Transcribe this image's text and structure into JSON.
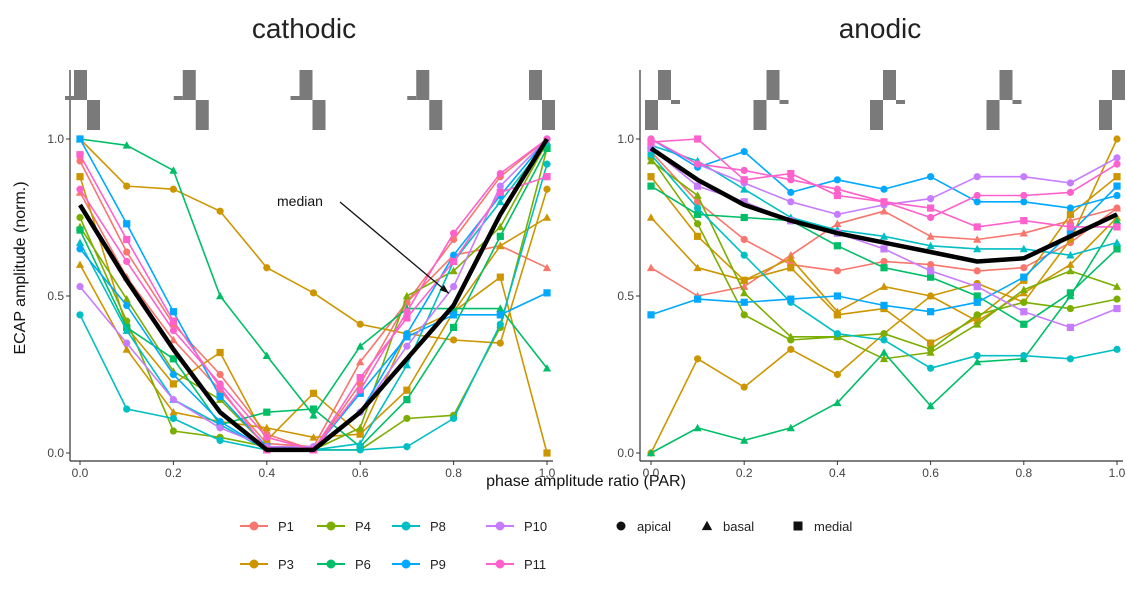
{
  "chart_data": {
    "type": "line",
    "ylabel": "ECAP amplitude (norm.)",
    "xlabel": "phase amplitude ratio (PAR)",
    "xlim": [
      0,
      1
    ],
    "ylim": [
      0,
      1
    ],
    "x_ticks": [
      "0.0",
      "0.2",
      "0.4",
      "0.6",
      "0.8",
      "1.0"
    ],
    "y_ticks": [
      "0.0",
      "0.5",
      "1.0"
    ],
    "x": [
      0,
      0.1,
      0.2,
      0.3,
      0.4,
      0.5,
      0.6,
      0.7,
      0.8,
      0.9,
      1.0
    ],
    "grid": false,
    "legend_participants": [
      {
        "name": "P1",
        "color": "#F8766D"
      },
      {
        "name": "P3",
        "color": "#CD9600"
      },
      {
        "name": "P4",
        "color": "#7CAE00"
      },
      {
        "name": "P6",
        "color": "#00BE67"
      },
      {
        "name": "P8",
        "color": "#00BFC4"
      },
      {
        "name": "P9",
        "color": "#00A9FF"
      },
      {
        "name": "P10",
        "color": "#C77CFF"
      },
      {
        "name": "P11",
        "color": "#FF61CC"
      }
    ],
    "legend_shapes": [
      {
        "name": "apical",
        "shape": "circle"
      },
      {
        "name": "basal",
        "shape": "triangle"
      },
      {
        "name": "medial",
        "shape": "square"
      }
    ],
    "panels": [
      {
        "title": "cathodic",
        "annotation": "median",
        "median": [
          0.79,
          0.55,
          0.33,
          0.13,
          0.01,
          0.01,
          0.13,
          0.3,
          0.47,
          0.76,
          1.0
        ],
        "series": [
          {
            "participant": "P1",
            "color": "#F8766D",
            "shape": "circle",
            "values": [
              0.93,
              0.64,
              0.41,
              0.25,
              0.06,
              0.01,
              0.22,
              0.48,
              0.68,
              0.88,
              1.0
            ]
          },
          {
            "participant": "P1",
            "color": "#F8766D",
            "shape": "triangle",
            "values": [
              0.83,
              0.56,
              0.36,
              0.2,
              0.03,
              0.02,
              0.29,
              0.48,
              0.63,
              0.66,
              0.59
            ]
          },
          {
            "participant": "P3",
            "color": "#CD9600",
            "shape": "circle",
            "values": [
              1.0,
              0.85,
              0.84,
              0.77,
              0.59,
              0.51,
              0.41,
              0.38,
              0.36,
              0.35,
              0.84
            ]
          },
          {
            "participant": "P3",
            "color": "#CD9600",
            "shape": "triangle",
            "values": [
              0.6,
              0.33,
              0.13,
              0.1,
              0.08,
              0.05,
              0.06,
              0.38,
              0.45,
              0.66,
              0.75
            ]
          },
          {
            "participant": "P3",
            "color": "#CD9600",
            "shape": "square",
            "values": [
              0.88,
              0.4,
              0.22,
              0.32,
              0.04,
              0.19,
              0.06,
              0.2,
              0.45,
              0.56,
              0.0
            ]
          },
          {
            "participant": "P4",
            "color": "#7CAE00",
            "shape": "circle",
            "values": [
              0.75,
              0.42,
              0.07,
              0.05,
              0.02,
              0.01,
              0.01,
              0.11,
              0.12,
              0.4,
              0.97
            ]
          },
          {
            "participant": "P4",
            "color": "#7CAE00",
            "shape": "triangle",
            "values": [
              0.72,
              0.49,
              0.26,
              0.17,
              0.02,
              0.01,
              0.08,
              0.5,
              0.58,
              0.72,
              0.99
            ]
          },
          {
            "participant": "P6",
            "color": "#00BE67",
            "shape": "triangle",
            "values": [
              1.0,
              0.98,
              0.9,
              0.5,
              0.31,
              0.12,
              0.34,
              0.46,
              0.46,
              0.46,
              0.27
            ]
          },
          {
            "participant": "P6",
            "color": "#00BE67",
            "shape": "square",
            "values": [
              0.71,
              0.4,
              0.3,
              0.09,
              0.13,
              0.14,
              0.02,
              0.17,
              0.4,
              0.69,
              0.97
            ]
          },
          {
            "participant": "P8",
            "color": "#00BFC4",
            "shape": "circle",
            "values": [
              0.44,
              0.14,
              0.11,
              0.04,
              0.01,
              0.01,
              0.01,
              0.02,
              0.11,
              0.41,
              0.92
            ]
          },
          {
            "participant": "P8",
            "color": "#00BFC4",
            "shape": "triangle",
            "values": [
              0.67,
              0.39,
              0.17,
              0.09,
              0.01,
              0.01,
              0.03,
              0.28,
              0.61,
              0.8,
              0.99
            ]
          },
          {
            "participant": "P9",
            "color": "#00A9FF",
            "shape": "square",
            "values": [
              1.0,
              0.73,
              0.45,
              0.18,
              0.02,
              0.01,
              0.19,
              0.37,
              0.44,
              0.44,
              0.51
            ]
          },
          {
            "participant": "P9",
            "color": "#00A9FF",
            "shape": "circle",
            "values": [
              0.65,
              0.47,
              0.25,
              0.1,
              0.01,
              0.01,
              0.13,
              0.38,
              0.63,
              0.82,
              1.0
            ]
          },
          {
            "participant": "P10",
            "color": "#C77CFF",
            "shape": "circle",
            "values": [
              0.53,
              0.35,
              0.17,
              0.08,
              0.02,
              0.02,
              0.13,
              0.34,
              0.53,
              0.85,
              1.0
            ]
          },
          {
            "participant": "P11",
            "color": "#FF61CC",
            "shape": "circle",
            "values": [
              0.84,
              0.61,
              0.39,
              0.22,
              0.05,
              0.01,
              0.2,
              0.45,
              0.7,
              0.89,
              1.0
            ]
          },
          {
            "participant": "P11",
            "color": "#FF61CC",
            "shape": "square",
            "values": [
              0.95,
              0.68,
              0.42,
              0.21,
              0.01,
              0.01,
              0.24,
              0.43,
              0.61,
              0.83,
              0.88
            ]
          }
        ]
      },
      {
        "title": "anodic",
        "median": [
          0.97,
          0.87,
          0.79,
          0.74,
          0.7,
          0.67,
          0.64,
          0.61,
          0.62,
          0.69,
          0.76
        ],
        "series": [
          {
            "participant": "P1",
            "color": "#F8766D",
            "shape": "circle",
            "values": [
              0.96,
              0.8,
              0.68,
              0.6,
              0.58,
              0.61,
              0.6,
              0.58,
              0.59,
              0.67,
              0.78
            ]
          },
          {
            "participant": "P1",
            "color": "#F8766D",
            "shape": "triangle",
            "values": [
              0.59,
              0.5,
              0.53,
              0.63,
              0.73,
              0.77,
              0.69,
              0.68,
              0.7,
              0.74,
              0.78
            ]
          },
          {
            "participant": "P3",
            "color": "#CD9600",
            "shape": "circle",
            "values": [
              0.0,
              0.3,
              0.21,
              0.33,
              0.25,
              0.38,
              0.5,
              0.54,
              0.48,
              0.68,
              1.0
            ]
          },
          {
            "participant": "P3",
            "color": "#CD9600",
            "shape": "triangle",
            "values": [
              0.75,
              0.59,
              0.55,
              0.62,
              0.45,
              0.53,
              0.5,
              0.42,
              0.51,
              0.6,
              0.75
            ]
          },
          {
            "participant": "P3",
            "color": "#CD9600",
            "shape": "square",
            "values": [
              0.88,
              0.69,
              0.55,
              0.59,
              0.44,
              0.46,
              0.35,
              0.43,
              0.55,
              0.76,
              0.88
            ]
          },
          {
            "participant": "P4",
            "color": "#7CAE00",
            "shape": "circle",
            "values": [
              0.94,
              0.73,
              0.44,
              0.36,
              0.37,
              0.38,
              0.33,
              0.44,
              0.48,
              0.46,
              0.49
            ]
          },
          {
            "participant": "P4",
            "color": "#7CAE00",
            "shape": "triangle",
            "values": [
              0.93,
              0.82,
              0.51,
              0.37,
              0.37,
              0.3,
              0.32,
              0.41,
              0.52,
              0.58,
              0.53
            ]
          },
          {
            "participant": "P6",
            "color": "#00BE67",
            "shape": "triangle",
            "values": [
              0.0,
              0.08,
              0.04,
              0.08,
              0.16,
              0.32,
              0.15,
              0.29,
              0.3,
              0.5,
              0.74
            ]
          },
          {
            "participant": "P6",
            "color": "#00BE67",
            "shape": "square",
            "values": [
              0.85,
              0.76,
              0.75,
              0.74,
              0.66,
              0.59,
              0.56,
              0.5,
              0.41,
              0.51,
              0.65
            ]
          },
          {
            "participant": "P8",
            "color": "#00BFC4",
            "shape": "circle",
            "values": [
              0.95,
              0.78,
              0.63,
              0.48,
              0.38,
              0.36,
              0.27,
              0.31,
              0.31,
              0.3,
              0.33
            ]
          },
          {
            "participant": "P8",
            "color": "#00BFC4",
            "shape": "triangle",
            "values": [
              0.98,
              0.93,
              0.84,
              0.75,
              0.71,
              0.69,
              0.66,
              0.65,
              0.65,
              0.63,
              0.67
            ]
          },
          {
            "participant": "P9",
            "color": "#00A9FF",
            "shape": "square",
            "values": [
              0.44,
              0.49,
              0.48,
              0.49,
              0.5,
              0.47,
              0.45,
              0.48,
              0.56,
              0.7,
              0.85
            ]
          },
          {
            "participant": "P9",
            "color": "#00A9FF",
            "shape": "circle",
            "values": [
              1.0,
              0.91,
              0.96,
              0.83,
              0.87,
              0.84,
              0.88,
              0.8,
              0.8,
              0.78,
              0.82
            ]
          },
          {
            "participant": "P10",
            "color": "#C77CFF",
            "shape": "circle",
            "values": [
              1.0,
              0.92,
              0.86,
              0.8,
              0.76,
              0.79,
              0.81,
              0.88,
              0.88,
              0.86,
              0.94
            ]
          },
          {
            "participant": "P10",
            "color": "#C77CFF",
            "shape": "square",
            "values": [
              0.97,
              0.85,
              0.8,
              0.74,
              0.7,
              0.65,
              0.58,
              0.53,
              0.45,
              0.4,
              0.46
            ]
          },
          {
            "participant": "P11",
            "color": "#FF61CC",
            "shape": "circle",
            "values": [
              1.0,
              0.92,
              0.9,
              0.87,
              0.84,
              0.8,
              0.75,
              0.82,
              0.82,
              0.83,
              0.92
            ]
          },
          {
            "participant": "P11",
            "color": "#FF61CC",
            "shape": "square",
            "values": [
              0.99,
              1.0,
              0.87,
              0.89,
              0.82,
              0.8,
              0.78,
              0.72,
              0.74,
              0.72,
              0.72
            ]
          }
        ]
      }
    ]
  }
}
